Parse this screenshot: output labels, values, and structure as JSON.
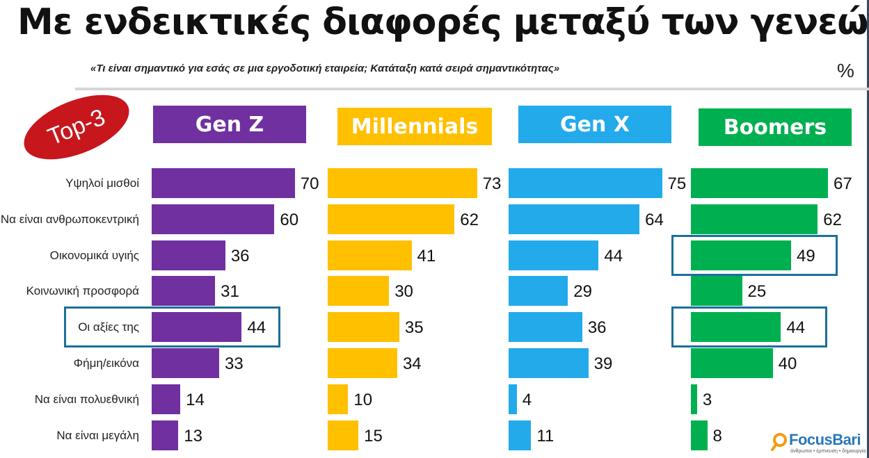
{
  "title": "Με ενδεικτικές διαφορές μεταξύ των γενεών:",
  "subtitle": "«Τι είναι σημαντικό για εσάς σε μια εργοδοτική εταιρεία; Κατάταξη κατά σειρά σημαντικότητας»",
  "unit": "%",
  "badge": "Top-3",
  "logo": {
    "name": "FocusBari",
    "tagline": "άνθρωποι • έμπνευση • δημιουργία"
  },
  "colors": {
    "genz": "#7030a0",
    "millennials": "#ffc000",
    "genx": "#23aaeb",
    "boomers": "#00b050",
    "highlight": "#1b6f9b",
    "badge": "#c8161d"
  },
  "chart_data": {
    "type": "bar",
    "orientation": "horizontal",
    "categories": [
      "Υψηλοί μισθοί",
      "Να είναι ανθρωποκεντρική",
      "Οικονομικά υγιής",
      "Κοινωνική προσφορά",
      "Οι αξίες της",
      "Φήμη/εικόνα",
      "Να είναι πολυεθνική",
      "Να είναι μεγάλη"
    ],
    "series": [
      {
        "name": "Gen Z",
        "values": [
          70,
          60,
          36,
          31,
          44,
          33,
          14,
          13
        ],
        "highlight": [
          4
        ]
      },
      {
        "name": "Millennials",
        "values": [
          73,
          62,
          41,
          30,
          35,
          34,
          10,
          15
        ],
        "highlight": []
      },
      {
        "name": "Gen X",
        "values": [
          75,
          64,
          44,
          29,
          36,
          39,
          4,
          11
        ],
        "highlight": []
      },
      {
        "name": "Boomers",
        "values": [
          67,
          62,
          49,
          25,
          44,
          40,
          3,
          8
        ],
        "highlight": [
          2,
          4
        ]
      }
    ],
    "xlim": [
      0,
      100
    ],
    "grid": false,
    "legend": "top"
  }
}
